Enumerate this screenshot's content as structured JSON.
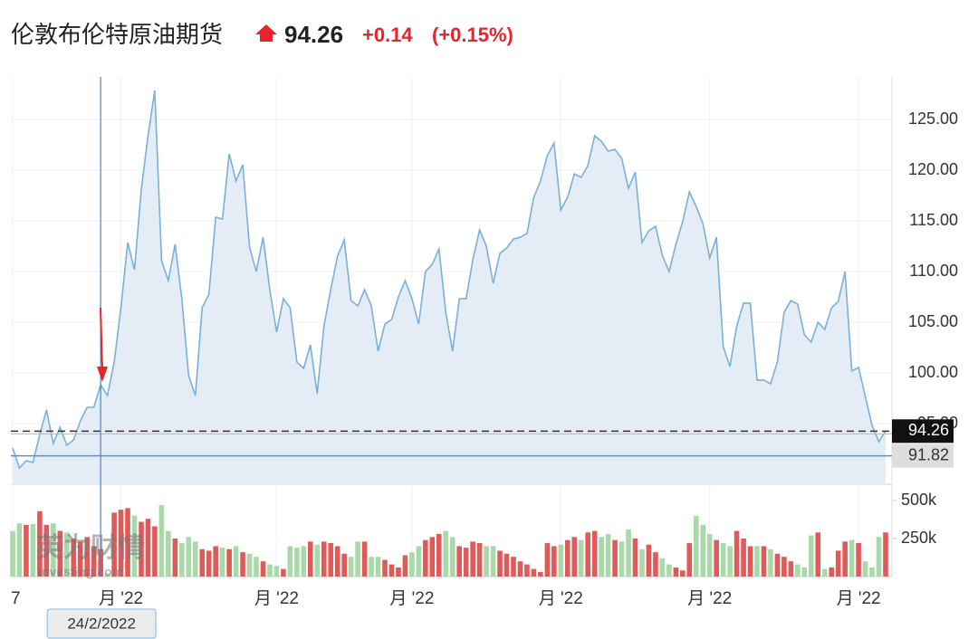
{
  "header": {
    "title": "伦敦布伦特原油期货",
    "price": "94.26",
    "change": "+0.14",
    "change_pct": "(+0.15%)"
  },
  "chart_data": {
    "type": "area",
    "categories": [
      "7",
      null,
      null,
      null,
      null,
      null,
      null,
      null,
      null,
      null,
      null,
      null,
      null,
      null,
      null,
      null,
      "月 '22",
      null,
      null,
      null,
      null,
      null,
      null,
      null,
      null,
      null,
      null,
      null,
      null,
      null,
      null,
      null,
      null,
      null,
      null,
      null,
      null,
      null,
      null,
      "月 '22",
      null,
      null,
      null,
      null,
      null,
      null,
      null,
      null,
      null,
      null,
      null,
      null,
      null,
      null,
      null,
      null,
      null,
      null,
      null,
      "月 '22",
      null,
      null,
      null,
      null,
      null,
      null,
      null,
      null,
      null,
      null,
      null,
      null,
      null,
      null,
      null,
      null,
      null,
      null,
      null,
      null,
      null,
      "月 '22",
      null,
      null,
      null,
      null,
      null,
      null,
      null,
      null,
      null,
      null,
      null,
      null,
      null,
      null,
      null,
      null,
      null,
      null,
      null,
      null,
      null,
      "月 '22",
      null,
      null,
      null,
      null,
      null,
      null,
      null,
      null,
      null,
      null,
      null,
      null,
      null,
      null,
      null,
      null,
      null,
      null,
      null,
      null,
      null,
      "月 '22",
      null,
      null,
      null,
      null
    ],
    "values": [
      92.59,
      90.62,
      91.34,
      91.16,
      93.93,
      96.34,
      93.04,
      94.64,
      92.86,
      93.39,
      95.27,
      96.61,
      96.61,
      98.84,
      97.77,
      101.07,
      106.43,
      112.86,
      110.18,
      118.04,
      123.39,
      127.86,
      111.07,
      109.11,
      112.68,
      107.32,
      99.73,
      97.77,
      106.43,
      107.77,
      115.36,
      115.18,
      121.61,
      118.93,
      120.54,
      112.41,
      110.0,
      113.39,
      108.21,
      104.02,
      107.32,
      106.43,
      101.07,
      100.45,
      102.77,
      97.95,
      104.64,
      108.21,
      111.52,
      113.12,
      107.14,
      106.61,
      108.21,
      106.61,
      102.14,
      104.82,
      105.27,
      107.5,
      109.11,
      107.32,
      104.82,
      110.0,
      110.71,
      112.23,
      105.98,
      102.14,
      107.32,
      107.32,
      111.16,
      114.11,
      112.5,
      108.84,
      111.79,
      112.32,
      113.21,
      113.39,
      113.75,
      117.32,
      118.93,
      121.43,
      122.68,
      116.07,
      117.32,
      119.64,
      119.29,
      120.45,
      123.39,
      122.86,
      121.88,
      122.05,
      121.16,
      118.21,
      119.82,
      112.86,
      114.02,
      114.46,
      111.61,
      110.0,
      112.68,
      114.91,
      117.86,
      116.43,
      114.73,
      111.34,
      113.39,
      102.59,
      100.63,
      104.64,
      106.88,
      106.88,
      99.29,
      99.29,
      98.93,
      101.07,
      105.98,
      107.14,
      106.79,
      103.75,
      103.04,
      105.0,
      104.29,
      106.43,
      107.05,
      110.0,
      100.18,
      100.54,
      97.68,
      94.82,
      93.21,
      94.26
    ],
    "color": "#7ab0d8",
    "fill": "#e4edf6",
    "ylim": [
      89.02,
      129.2
    ],
    "yticks": [
      {
        "value": 95,
        "label": "95.00"
      },
      {
        "value": 100,
        "label": "100.00"
      },
      {
        "value": 105,
        "label": "105.00"
      },
      {
        "value": 110,
        "label": "110.00"
      },
      {
        "value": 115,
        "label": "115.00"
      },
      {
        "value": 120,
        "label": "120.00"
      },
      {
        "value": 125,
        "label": "125.00"
      }
    ],
    "grid": true,
    "last_price": {
      "value": 94.26,
      "label": "94.26"
    },
    "ref_line": {
      "value": 91.82,
      "label": "91.82"
    },
    "crosshair_index": 13,
    "crosshair_label": "24/2/2022",
    "watermark": "英为财情",
    "watermark_sub": "Investing.com",
    "volume": {
      "type": "bar",
      "up_color": "#e05a5a",
      "down_color": "#a9d9a9",
      "ylim": [
        0,
        577400
      ],
      "yticks": [
        {
          "value": 250000,
          "label": "250k"
        },
        {
          "value": 500000,
          "label": "500k"
        }
      ],
      "values": [
        300000,
        350000,
        340000,
        345000,
        430000,
        340000,
        350000,
        300000,
        290000,
        250000,
        230000,
        260000,
        200000,
        180000,
        20000,
        420000,
        440000,
        450000,
        400000,
        360000,
        380000,
        330000,
        470000,
        300000,
        250000,
        220000,
        260000,
        230000,
        180000,
        170000,
        200000,
        190000,
        180000,
        200000,
        160000,
        150000,
        130000,
        100000,
        80000,
        70000,
        50000,
        200000,
        190000,
        200000,
        230000,
        210000,
        230000,
        220000,
        200000,
        150000,
        130000,
        230000,
        230000,
        130000,
        130000,
        110000,
        80000,
        60000,
        140000,
        160000,
        200000,
        240000,
        260000,
        280000,
        300000,
        260000,
        200000,
        190000,
        230000,
        220000,
        200000,
        200000,
        170000,
        150000,
        130000,
        100000,
        80000,
        50000,
        30000,
        220000,
        200000,
        210000,
        240000,
        260000,
        240000,
        290000,
        300000,
        260000,
        280000,
        240000,
        230000,
        310000,
        250000,
        180000,
        210000,
        160000,
        120000,
        80000,
        60000,
        40000,
        220000,
        400000,
        340000,
        280000,
        240000,
        220000,
        200000,
        300000,
        250000,
        200000,
        200000,
        200000,
        180000,
        150000,
        130000,
        100000,
        80000,
        60000,
        270000,
        290000,
        50000,
        60000,
        170000,
        230000,
        240000,
        220000,
        100000,
        60000,
        260000,
        290000
      ]
    }
  }
}
